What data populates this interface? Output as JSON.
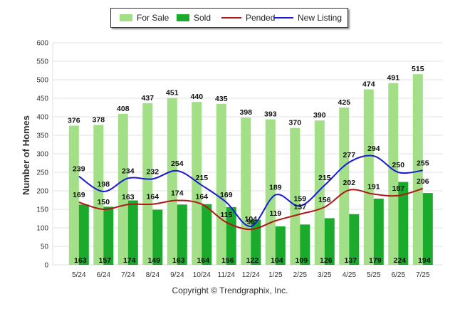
{
  "chart_data": {
    "type": "bar",
    "ylabel": "Number of Homes",
    "ylim": [
      0,
      600
    ],
    "ytick_step": 50,
    "categories": [
      "5/24",
      "6/24",
      "7/24",
      "8/24",
      "9/24",
      "10/24",
      "11/24",
      "12/24",
      "1/25",
      "2/25",
      "3/25",
      "4/25",
      "5/25",
      "6/25",
      "7/25"
    ],
    "series": [
      {
        "name": "For Sale",
        "kind": "bar",
        "color": "#a3df86",
        "values": [
          376,
          378,
          408,
          437,
          451,
          440,
          435,
          398,
          393,
          370,
          390,
          425,
          474,
          491,
          515
        ]
      },
      {
        "name": "Sold",
        "kind": "bar",
        "color": "#1aab2c",
        "values": [
          163,
          157,
          174,
          149,
          163,
          164,
          156,
          122,
          104,
          109,
          126,
          137,
          179,
          224,
          194
        ]
      },
      {
        "name": "Pended",
        "kind": "line",
        "color": "#b01818",
        "values": [
          169,
          150,
          163,
          164,
          174,
          164,
          115,
          96,
          119,
          137,
          156,
          202,
          191,
          187,
          206
        ]
      },
      {
        "name": "New Listing",
        "kind": "line",
        "color": "#1a1ad4",
        "values": [
          239,
          198,
          234,
          232,
          254,
          215,
          169,
          104,
          189,
          159,
          215,
          277,
          294,
          250,
          255
        ]
      }
    ],
    "grid": true,
    "legend_position": "top-center"
  },
  "copyright": "Copyright © Trendgraphix, Inc."
}
